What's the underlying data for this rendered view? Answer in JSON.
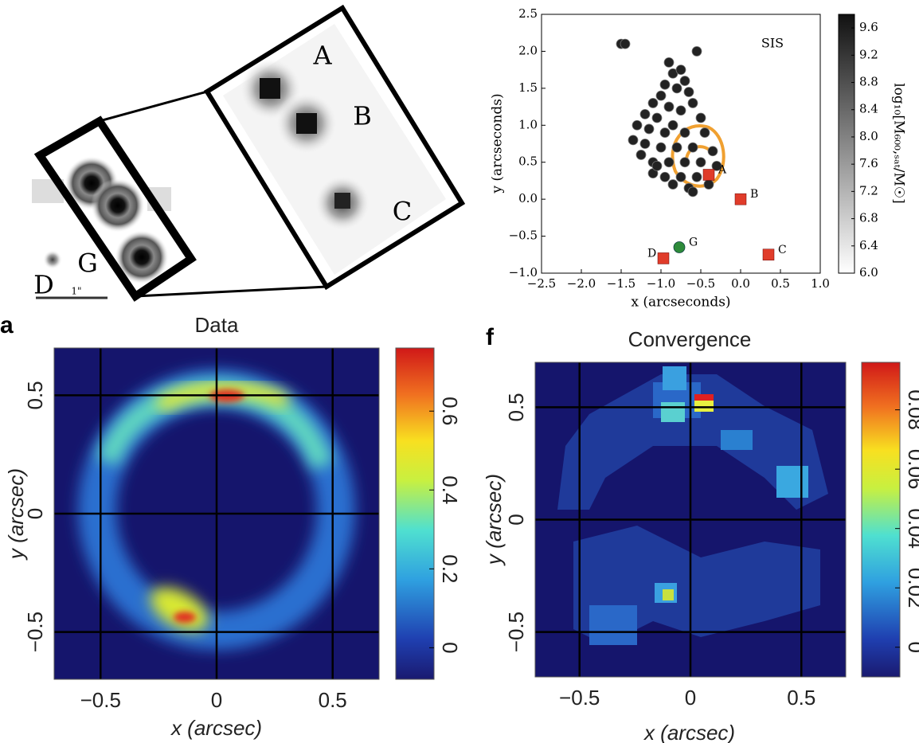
{
  "chart_data": [
    {
      "type": "image",
      "labels": [
        "A",
        "B",
        "C",
        "G",
        "D"
      ],
      "scale_label": "1\""
    },
    {
      "type": "scatter",
      "xlabel": "x (arcseconds)",
      "ylabel": "y (arcseconds)",
      "annotation": "SIS",
      "xlim": [
        -2.5,
        1.0
      ],
      "ylim": [
        -1.0,
        2.5
      ],
      "xticks": [
        {
          "value": -2.5,
          "label": "−2.5"
        },
        {
          "value": -2.0,
          "label": "−2.0"
        },
        {
          "value": -1.5,
          "label": "−1.5"
        },
        {
          "value": -1.0,
          "label": "−1.0"
        },
        {
          "value": -0.5,
          "label": "−0.5"
        },
        {
          "value": 0,
          "label": "0.0"
        },
        0.5,
        {
          "value": 1,
          "label": "1.0"
        }
      ],
      "yticks": [
        {
          "value": -1.0,
          "label": "−1.0"
        },
        {
          "value": -0.5,
          "label": "−0.5"
        },
        {
          "value": 0,
          "label": "0.0"
        },
        0.5,
        {
          "value": 1,
          "label": "1.0"
        },
        1.5,
        {
          "value": 2,
          "label": "2.0"
        },
        2.5
      ],
      "colorbar": {
        "label": "log₁₀[M₆₀₀,ₛₐₜ/M☉]",
        "lim": [
          6.0,
          9.8
        ],
        "ticks": [
          {
            "value": 6,
            "label": "6.0"
          },
          6.4,
          6.8,
          7.2,
          7.6,
          {
            "value": 8,
            "label": "8.0"
          },
          8.4,
          8.8,
          9.2,
          9.6
        ]
      },
      "series": [
        {
          "color": "#222222",
          "marker": "circle",
          "x": [
            -1.5,
            -1.45,
            -0.55,
            -0.9,
            -0.85,
            -0.75,
            -0.7,
            -0.95,
            -0.8,
            -0.65,
            -1.0,
            -1.1,
            -0.6,
            -0.9,
            -0.75,
            -1.2,
            -1.05,
            -0.5,
            -0.85,
            -1.3,
            -1.15,
            -0.95,
            -0.7,
            -0.45,
            -1.35,
            -1.2,
            -1.0,
            -0.8,
            -0.6,
            -0.35,
            -1.25,
            -1.1,
            -0.9,
            -0.7,
            -0.5,
            -0.3,
            -1.1,
            -0.95,
            -0.75,
            -0.55,
            -0.85,
            -0.65,
            -1.05,
            -0.6,
            -0.4
          ],
          "y": [
            2.1,
            2.1,
            2.0,
            1.85,
            1.7,
            1.75,
            1.6,
            1.55,
            1.5,
            1.45,
            1.4,
            1.3,
            1.3,
            1.25,
            1.2,
            1.15,
            1.1,
            1.1,
            1.0,
            1.0,
            0.95,
            0.9,
            0.9,
            0.9,
            0.8,
            0.75,
            0.7,
            0.7,
            0.7,
            0.65,
            0.6,
            0.5,
            0.5,
            0.5,
            0.5,
            0.45,
            0.35,
            0.3,
            0.3,
            0.3,
            0.2,
            0.15,
            0.45,
            0.1,
            0.2
          ]
        },
        {
          "color": "#e03c2a",
          "marker": "square",
          "labels": [
            "A",
            "B",
            "C",
            "D"
          ],
          "x": [
            -0.4,
            0,
            0.35,
            -0.97
          ],
          "y": [
            0.33,
            0,
            -0.75,
            -0.8
          ]
        },
        {
          "color": "#2e8b3a",
          "marker": "circle",
          "labels": [
            "G"
          ],
          "x": [
            -0.77
          ],
          "y": [
            -0.65
          ]
        }
      ]
    },
    {
      "type": "heatmap",
      "panel": "a",
      "title": "Data",
      "xlabel": "x (arcsec)",
      "ylabel": "y (arcsec)",
      "xlim": [
        -0.7,
        0.7
      ],
      "ylim": [
        -0.7,
        0.7
      ],
      "grid": true,
      "xticks": [
        {
          "value": -0.5,
          "label": "−0.5"
        },
        0,
        0.5
      ],
      "yticks": [
        {
          "value": -0.5,
          "label": "−0.5"
        },
        0,
        0.5
      ],
      "colorbar": {
        "lim": [
          -0.08,
          0.76
        ],
        "ticks": [
          0,
          0.2,
          0.4,
          0.6
        ]
      }
    },
    {
      "type": "heatmap",
      "panel": "f",
      "title": "Convergence",
      "xlabel": "x (arcsec)",
      "ylabel": "y (arcsec)",
      "xlim": [
        -0.7,
        0.7
      ],
      "ylim": [
        -0.7,
        0.7
      ],
      "grid": true,
      "xticks": [
        {
          "value": -0.5,
          "label": "−0.5"
        },
        0,
        0.5
      ],
      "yticks": [
        {
          "value": -0.5,
          "label": "−0.5"
        },
        0,
        0.5
      ],
      "colorbar": {
        "lim": [
          -0.01,
          0.096
        ],
        "ticks": [
          0,
          0.02,
          0.04,
          0.06,
          0.08
        ]
      }
    }
  ]
}
